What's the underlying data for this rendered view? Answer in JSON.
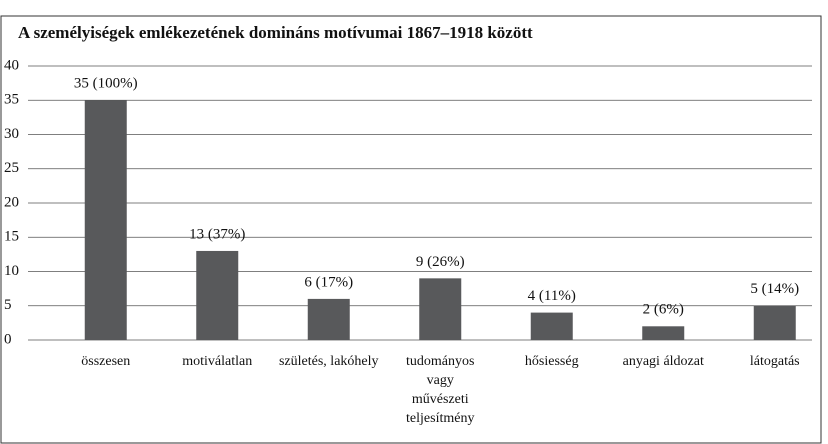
{
  "chart_data": {
    "type": "bar",
    "title": "A személyiségek emlékezetének domináns motívumai 1867–1918 között",
    "categories": [
      "összesen",
      "motiválatlan",
      "születés, lakóhely",
      "tudományos vagy művészeti teljesítmény",
      "hősiesség",
      "anyagi áldozat",
      "látogatás"
    ],
    "values": [
      35,
      13,
      6,
      9,
      4,
      2,
      5
    ],
    "value_labels": [
      "35 (100%)",
      "13 (37%)",
      "6 (17%)",
      "9 (26%)",
      "4 (11%)",
      "2 (6%)",
      "5 (14%)"
    ],
    "color": "#58595b",
    "ylim": [
      0,
      40
    ],
    "yticks": [
      0,
      5,
      10,
      15,
      20,
      25,
      30,
      35,
      40
    ],
    "grid": true
  }
}
